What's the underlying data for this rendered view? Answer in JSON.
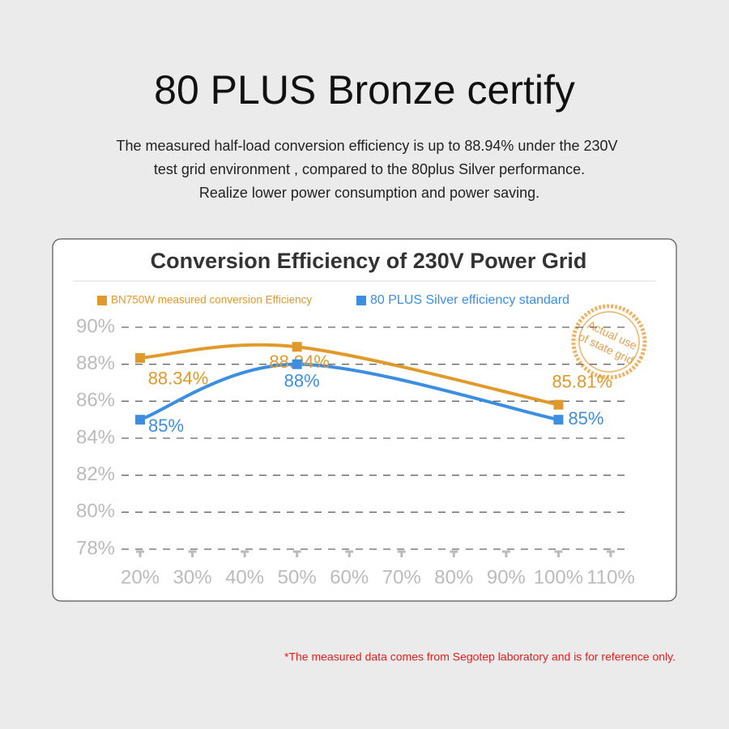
{
  "header": {
    "title": "80 PLUS Bronze certify",
    "description": [
      "The measured half-load conversion efficiency is up to 88.94% under the 230V",
      "test grid environment , compared to the 80plus Silver performance.",
      "Realize lower power consumption and power saving."
    ]
  },
  "stamp": [
    "Actual use",
    "of state grid"
  ],
  "footnote": "*The measured data comes from Segotep laboratory and is for reference only.",
  "chart_data": {
    "type": "line",
    "title": "Conversion Efficiency of 230V Power Grid",
    "x": [
      20,
      50,
      100
    ],
    "series": [
      {
        "name": "BN750W measured conversion Efficiency",
        "color": "#e0992a",
        "values": [
          88.34,
          88.94,
          85.81
        ],
        "value_labels": [
          "88.34%",
          "88.94%",
          "85.81%"
        ]
      },
      {
        "name": "80 PLUS Silver efficiency standard",
        "color": "#3b8ee0",
        "values": [
          85,
          88,
          85
        ],
        "value_labels": [
          "85%",
          "88%",
          "85%"
        ]
      }
    ],
    "xlim": [
      20,
      110
    ],
    "xticks": [
      {
        "value": 20,
        "label": "20%"
      },
      {
        "value": 30,
        "label": "30%"
      },
      {
        "value": 40,
        "label": "40%"
      },
      {
        "value": 50,
        "label": "50%"
      },
      {
        "value": 60,
        "label": "60%"
      },
      {
        "value": 70,
        "label": "70%"
      },
      {
        "value": 80,
        "label": "80%"
      },
      {
        "value": 90,
        "label": "90%"
      },
      {
        "value": 100,
        "label": "100%"
      },
      {
        "value": 110,
        "label": "110%"
      }
    ],
    "ylim": [
      78,
      90
    ],
    "yticks": [
      {
        "value": 78,
        "label": "78%"
      },
      {
        "value": 80,
        "label": "80%"
      },
      {
        "value": 82,
        "label": "82%"
      },
      {
        "value": 84,
        "label": "84%"
      },
      {
        "value": 86,
        "label": "86%"
      },
      {
        "value": 88,
        "label": "88%"
      },
      {
        "value": 90,
        "label": "90%"
      }
    ],
    "grid": true
  }
}
